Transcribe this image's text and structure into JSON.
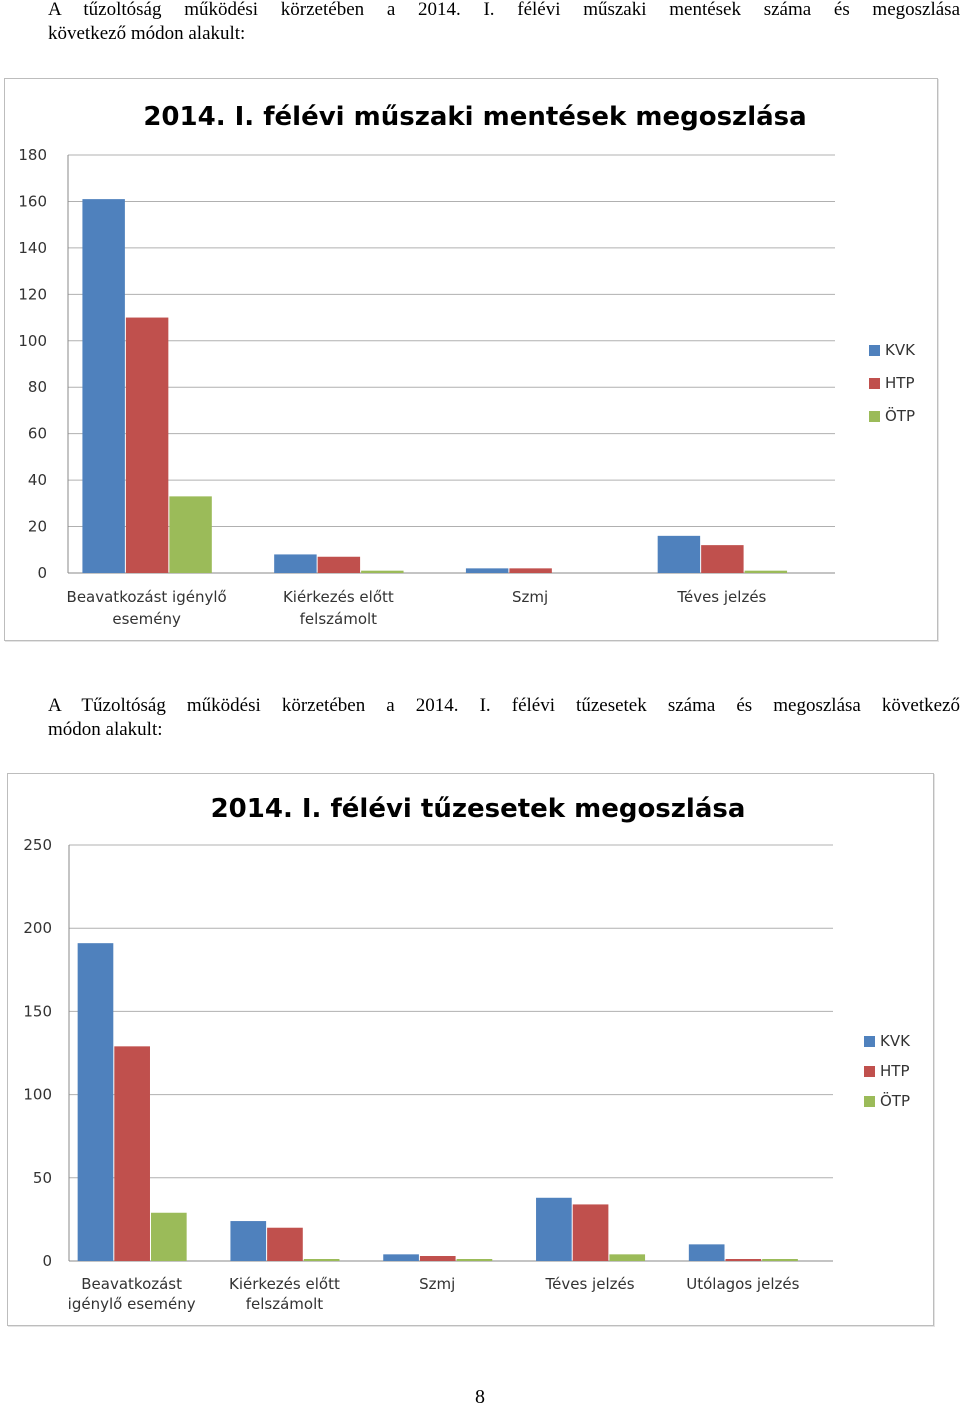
{
  "paragraphs": [
    {
      "line1": "A tűzoltóság működési körzetében a 2014. I. félévi műszaki mentések száma és megoszlása",
      "line2": "következő módon alakult:"
    },
    {
      "line1": "A Tűzoltóság működési körzetében a 2014. I. félévi tűzesetek száma és megoszlása következő",
      "line2": "módon alakult:"
    }
  ],
  "page_number": "8",
  "colors": {
    "KVK": "#4f81bd",
    "HTP": "#c0504d",
    "ÖTP": "#9bbb59",
    "grid": "#b0b0b0",
    "axis": "#888888"
  },
  "chart_data": [
    {
      "type": "bar",
      "title": "2014. I. félévi műszaki mentések megoszlása",
      "categories": [
        [
          "Beavatkozást igénylő",
          "esemény"
        ],
        [
          "Kiérkezés előtt",
          "felszámolt"
        ],
        [
          "Szmj"
        ],
        [
          "Téves jelzés"
        ]
      ],
      "series": [
        {
          "name": "KVK",
          "values": [
            161,
            8,
            2,
            16
          ]
        },
        {
          "name": "HTP",
          "values": [
            110,
            7,
            2,
            12
          ]
        },
        {
          "name": "ÖTP",
          "values": [
            33,
            1,
            0,
            1
          ]
        }
      ],
      "ylim": [
        0,
        180
      ],
      "yticks": [
        0,
        20,
        40,
        60,
        80,
        100,
        120,
        140,
        160,
        180
      ],
      "grid": true,
      "legend": "right"
    },
    {
      "type": "bar",
      "title": "2014. I. félévi tűzesetek megoszlása",
      "categories": [
        [
          "Beavatkozást",
          "igénylő esemény"
        ],
        [
          "Kiérkezés előtt",
          "felszámolt"
        ],
        [
          "Szmj"
        ],
        [
          "Téves jelzés"
        ],
        [
          "Utólagos jelzés"
        ]
      ],
      "series": [
        {
          "name": "KVK",
          "values": [
            191,
            24,
            4,
            38,
            10
          ]
        },
        {
          "name": "HTP",
          "values": [
            129,
            20,
            3,
            34,
            1
          ]
        },
        {
          "name": "ÖTP",
          "values": [
            29,
            1,
            1,
            4,
            1
          ]
        }
      ],
      "ylim": [
        0,
        250
      ],
      "yticks": [
        0,
        50,
        100,
        150,
        200,
        250
      ],
      "grid": true,
      "legend": "right"
    }
  ]
}
